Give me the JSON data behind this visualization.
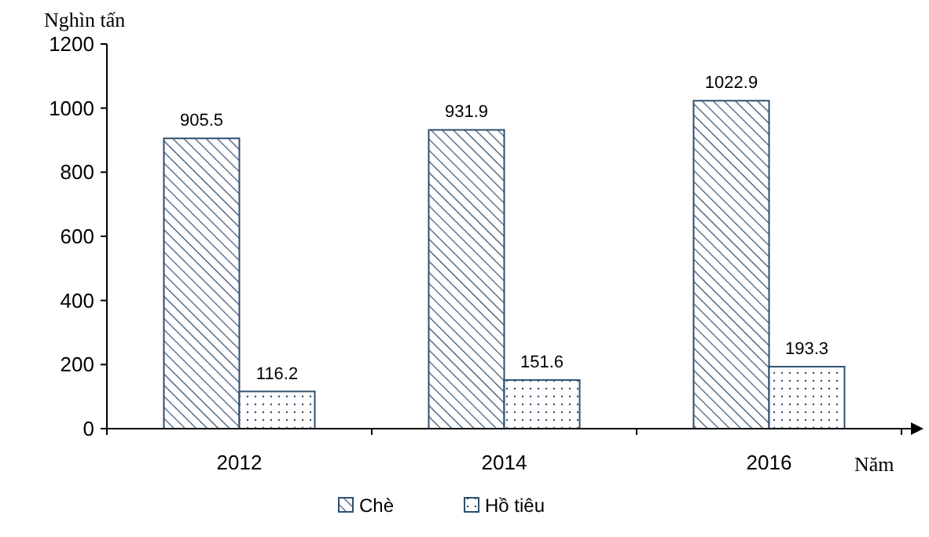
{
  "chart_data": {
    "type": "bar",
    "ylabel": "Nghìn tấn",
    "xlabel": "Năm",
    "categories": [
      "2012",
      "2014",
      "2016"
    ],
    "series": [
      {
        "name": "Chè",
        "color": "#2f4f6f",
        "values": [
          905.5,
          931.9,
          1022.9
        ]
      },
      {
        "name": "Hồ tiêu",
        "color": "#2f4f6f",
        "values": [
          116.2,
          151.6,
          193.3
        ]
      }
    ],
    "ylim": [
      0,
      1200
    ],
    "yticks": [
      0,
      200,
      400,
      600,
      800,
      1000,
      1200
    ],
    "data_labels": true,
    "grid": false,
    "legend": "bottom"
  }
}
